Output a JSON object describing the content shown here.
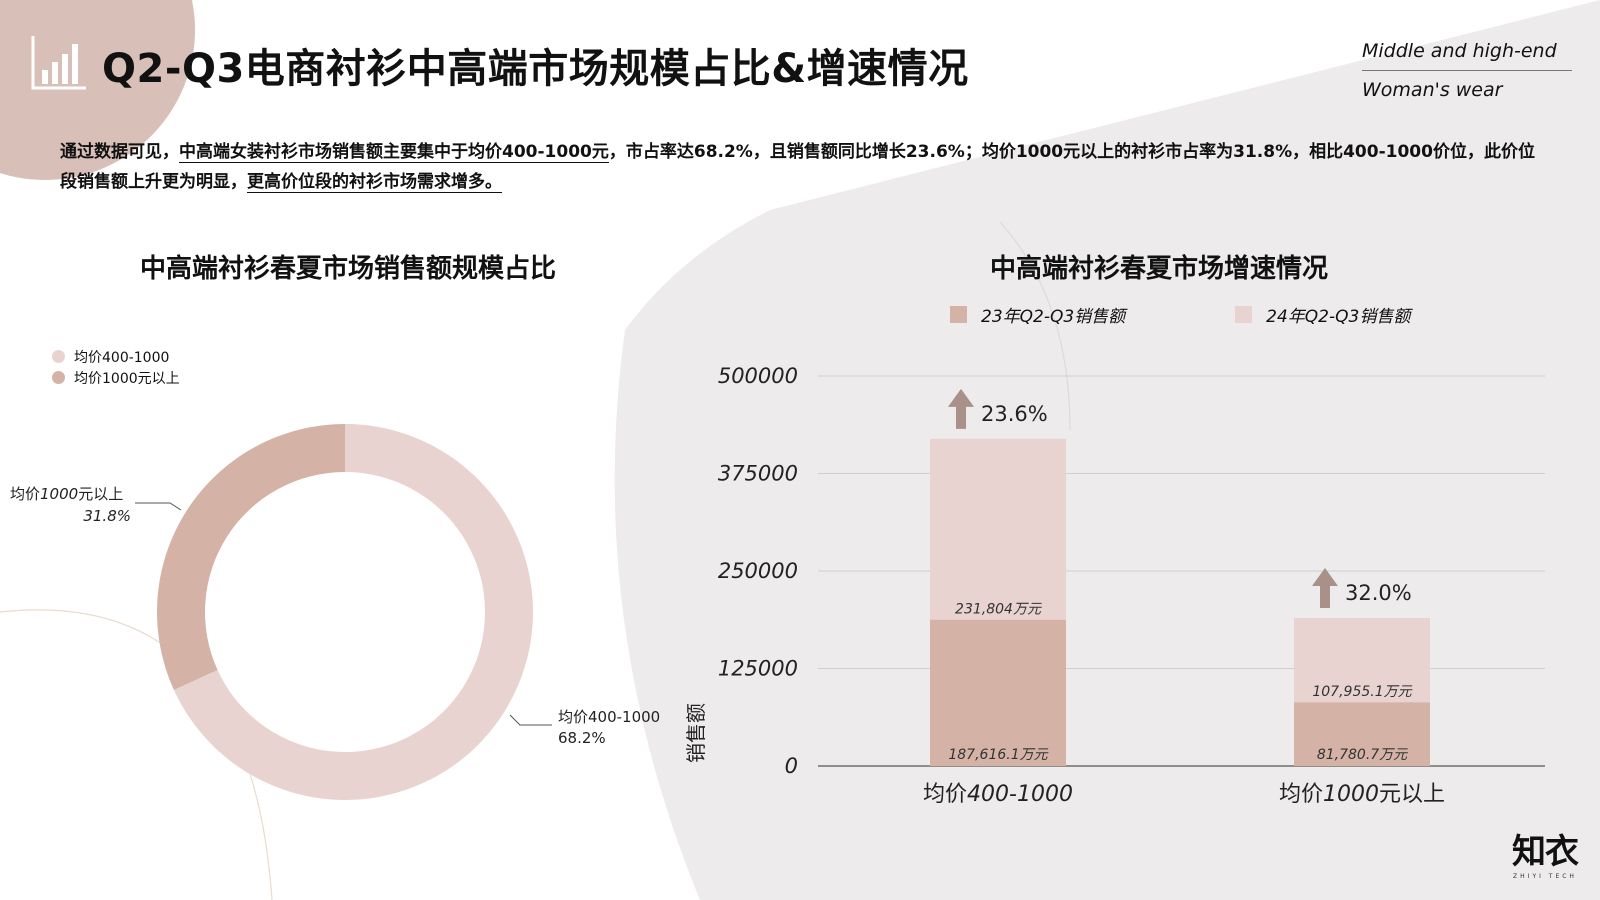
{
  "title": "Q2-Q3电商衬衫中高端市场规模占比&增速情况",
  "brand_en": {
    "line1": "Middle and high-end",
    "line2": "Woman's wear"
  },
  "description": {
    "p1": "通过数据可见，",
    "u1": "中高端女装衬衫市场销售额主要集中于均价400-1000元",
    "p2": "，市占率达68.2%，且销售额同比增长23.6%；均价1000元以上的衬衫市占率为31.8%，相比400-1000价位，此价位段销售额上升更为明显，",
    "u2": "更高价位段的衬衫市场需求增多。"
  },
  "logo": {
    "cn": "知衣",
    "en": "ZHIYI TECH"
  },
  "colors": {
    "light": "#E8D3D1",
    "dark": "#D4B3A6",
    "arrow": "#A99088",
    "grid": "#CFCFCF",
    "panel": "#EDEBEB",
    "accent_circle": "#D8BFB8"
  },
  "chart_data": [
    {
      "type": "pie",
      "style": "donut",
      "title": "中高端衬衫春夏市场销售额规模占比",
      "legend": [
        "均价400-1000",
        "均价1000元以上"
      ],
      "legend_position": "top-left",
      "slices": [
        {
          "label": "均价400-1000",
          "value": 68.2,
          "value_label": "68.2%",
          "color": "#E8D3D1"
        },
        {
          "label_prefix": "均价",
          "label_num": "1000",
          "label_suffix": "元以上",
          "value": 31.8,
          "value_label": "31.8%",
          "color": "#D4B3A6"
        }
      ]
    },
    {
      "type": "bar",
      "stacked": true,
      "title": "中高端衬衫春夏市场增速情况",
      "ylabel": "销售额",
      "ylim": [
        0,
        500000
      ],
      "yticks": [
        "0",
        "125000",
        "250000",
        "375000",
        "500000"
      ],
      "categories": [
        "均价400-1000",
        "均价1000元以上"
      ],
      "legend_position": "top",
      "grid": true,
      "series": [
        {
          "name": "23年Q2-Q3销售额",
          "values": [
            187616.1,
            81780.7
          ],
          "labels": [
            "187,616.1万元",
            "81,780.7万元"
          ],
          "color": "#D4B3A6"
        },
        {
          "name": "24年Q2-Q3销售额",
          "values": [
            231804,
            107955.1
          ],
          "labels": [
            "231,804万元",
            "107,955.1万元"
          ],
          "color": "#E8D3D1"
        }
      ],
      "growth_labels": [
        "23.6%",
        "32.0%"
      ]
    }
  ]
}
